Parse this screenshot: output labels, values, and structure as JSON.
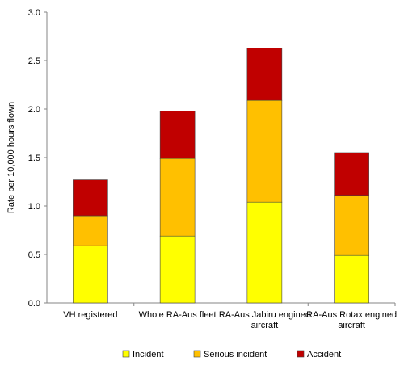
{
  "chart_data": {
    "type": "bar",
    "stacked": true,
    "categories": [
      [
        "VH registered"
      ],
      [
        "Whole RA-Aus fleet"
      ],
      [
        "RA-Aus Jabiru engined",
        "aircraft"
      ],
      [
        "RA-Aus Rotax engined",
        "aircraft"
      ]
    ],
    "series": [
      {
        "name": "Incident",
        "color": "#ffff00",
        "values": [
          0.59,
          0.69,
          1.04,
          0.49
        ]
      },
      {
        "name": "Serious incident",
        "color": "#ffc000",
        "values": [
          0.31,
          0.8,
          1.05,
          0.62
        ]
      },
      {
        "name": "Accident",
        "color": "#c00000",
        "values": [
          0.37,
          0.49,
          0.54,
          0.44
        ]
      }
    ],
    "ylabel": "Rate per 10,000 hours flown",
    "xlabel": "",
    "ylim": [
      0,
      3.0
    ],
    "yticks": [
      "0.0",
      "0.5",
      "1.0",
      "1.5",
      "2.0",
      "2.5",
      "3.0"
    ],
    "grid": false,
    "legend_position": "bottom"
  }
}
